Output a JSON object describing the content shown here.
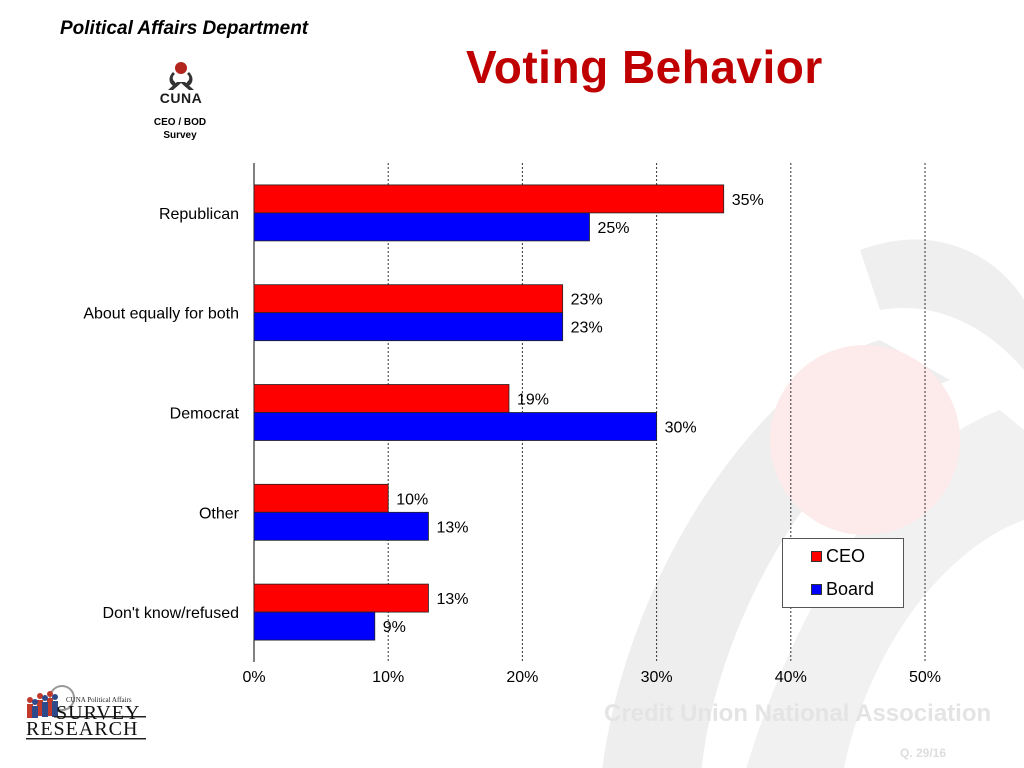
{
  "header": {
    "department": "Political Affairs Department",
    "title": "Voting Behavior",
    "logo_text": "CUNA",
    "survey_line1": "CEO / BOD",
    "survey_line2": "Survey"
  },
  "footer": {
    "association": "Credit Union National Association",
    "question": "Q. 29/16",
    "logo_top": "CUNA Political Affairs",
    "logo_line1": "SURVEY",
    "logo_line2": "RESEARCH"
  },
  "colors": {
    "ceo": "#ff0000",
    "board": "#0000ff",
    "title": "#c00000"
  },
  "chart_data": {
    "type": "bar",
    "orientation": "horizontal",
    "categories": [
      "Republican",
      "About equally for both",
      "Democrat",
      "Other",
      "Don't know/refused"
    ],
    "series": [
      {
        "name": "CEO",
        "values": [
          35,
          23,
          19,
          10,
          13
        ],
        "labels": [
          "35%",
          "23%",
          "19%",
          "10%",
          "13%"
        ]
      },
      {
        "name": "Board",
        "values": [
          25,
          23,
          30,
          13,
          9
        ],
        "labels": [
          "25%",
          "23%",
          "30%",
          "13%",
          "9%"
        ]
      }
    ],
    "xlim": [
      0,
      50
    ],
    "xticks": [
      0,
      10,
      20,
      30,
      40,
      50
    ],
    "xtick_labels": [
      "0%",
      "10%",
      "20%",
      "30%",
      "40%",
      "50%"
    ],
    "grid": true,
    "legend": "bottom-right"
  }
}
